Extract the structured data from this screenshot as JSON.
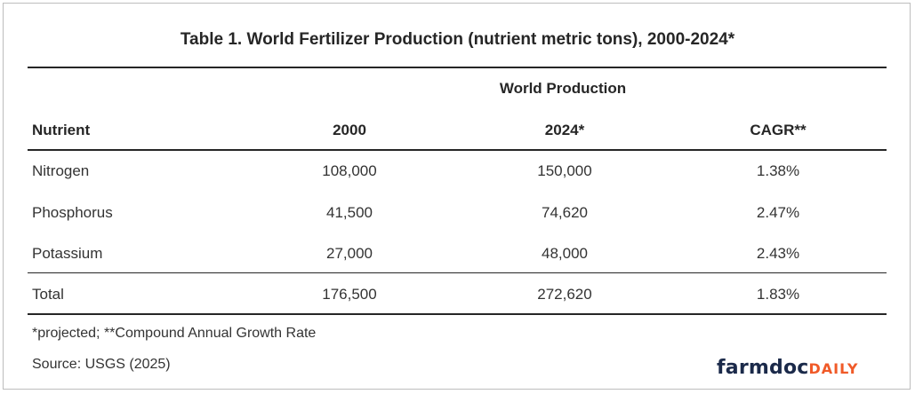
{
  "title": "Table 1. World Fertilizer Production (nutrient metric tons), 2000-2024*",
  "spanning_header": "World Production",
  "columns": [
    "Nutrient",
    "2000",
    "2024*",
    "CAGR**"
  ],
  "rows": [
    {
      "nutrient": "Nitrogen",
      "y2000": "108,000",
      "y2024": "150,000",
      "cagr": "1.38%"
    },
    {
      "nutrient": "Phosphorus",
      "y2000": "41,500",
      "y2024": "74,620",
      "cagr": "2.47%"
    },
    {
      "nutrient": "Potassium",
      "y2000": "27,000",
      "y2024": "48,000",
      "cagr": "2.43%"
    }
  ],
  "total": {
    "nutrient": "Total",
    "y2000": "176,500",
    "y2024": "272,620",
    "cagr": "1.83%"
  },
  "footnote": "*projected; **Compound Annual Growth Rate",
  "source": "Source: USGS (2025)",
  "logo": {
    "part1": "farmdoc",
    "part2": "DAILY",
    "color1": "#1b2a4a",
    "color2": "#f05a28"
  }
}
